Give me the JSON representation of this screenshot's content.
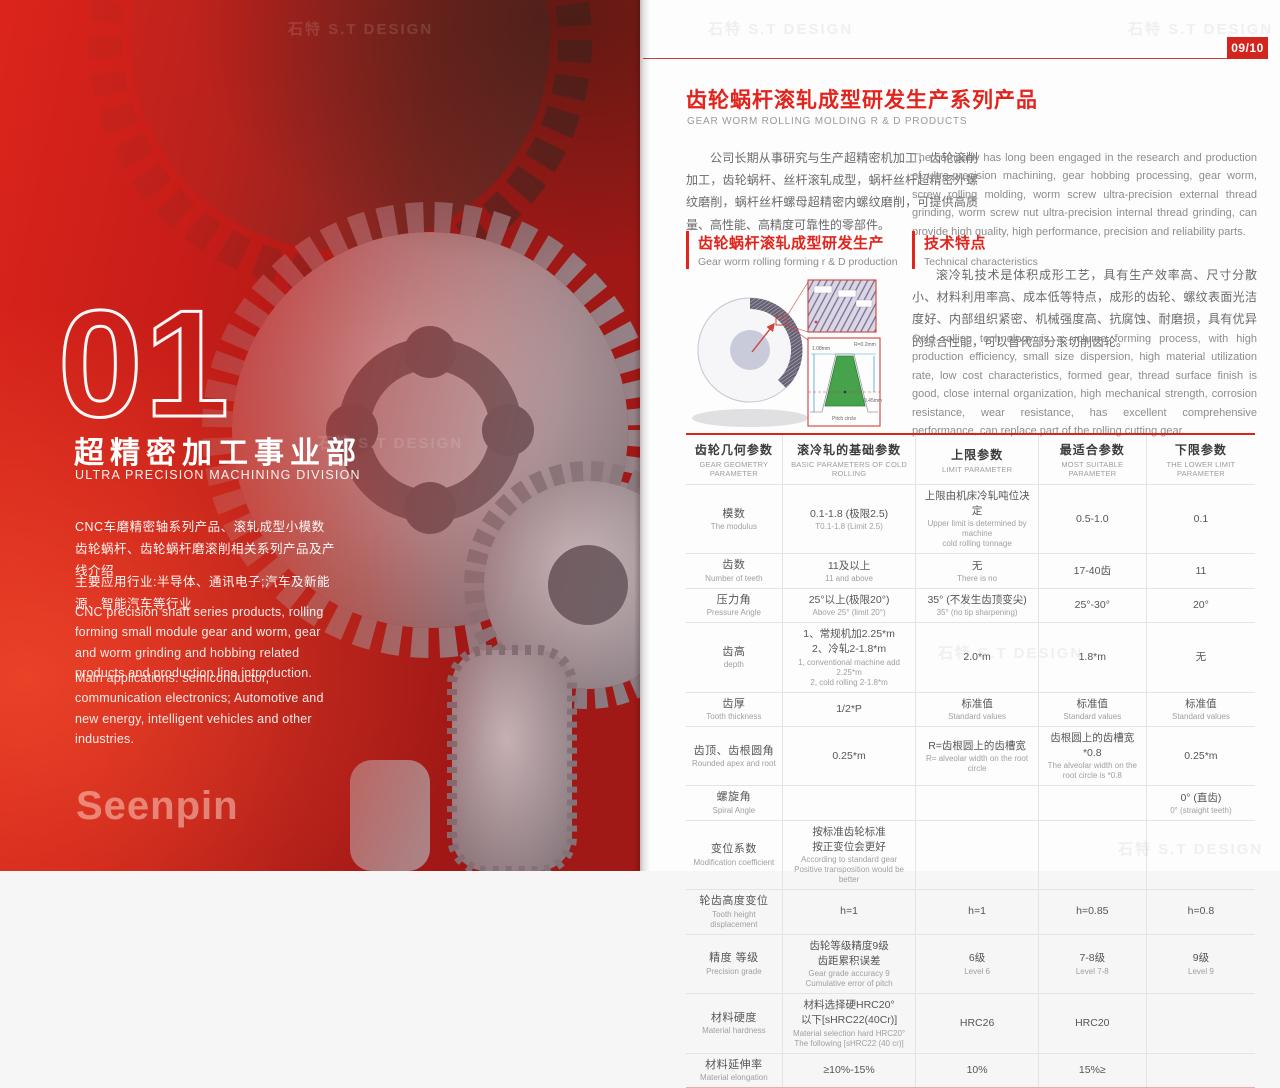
{
  "colors": {
    "accent_red": "#e2241d",
    "badge_red": "#d3251d",
    "panel_red": "#c41e1e",
    "table_rule": "#e4e4e4",
    "text_gray": "#6a6a6a"
  },
  "watermark": {
    "text": "石特 S.T DESIGN"
  },
  "page_badge": "09/10",
  "left_panel": {
    "number": "01",
    "title_cn": "超精密加工事业部",
    "title_en": "ULTRA PRECISION MACHINING DIVISION",
    "para_cn_1": "CNC车磨精密轴系列产品、滚轧成型小模数齿轮蜗杆、齿轮蜗杆磨滚削相关系列产品及产线介绍",
    "para_cn_2": "主要应用行业:半导体、通讯电子;汽车及新能源、智能汽车等行业",
    "para_en_1": "CNC precision shaft series products, rolling forming small module gear and worm, gear and worm grinding and hobbing related products and production line introduction.",
    "para_en_2": "Main applications: semiconductor, communication electronics; Automotive and new energy, intelligent vehicles and other industries.",
    "logo": "Seenpin"
  },
  "right_page": {
    "title_cn": "齿轮蜗杆滚轧成型研发生产系列产品",
    "title_en": "GEAR WORM ROLLING MOLDING R & D PRODUCTS",
    "intro_cn": "公司长期从事研究与生产超精密机加工，齿轮滚削加工，齿轮蜗杆、丝杆滚轧成型，蜗杆丝杆超精密外螺纹磨削，蜗杆丝杆螺母超精密内螺纹磨削，可提供高质量、高性能、高精度可靠性的零部件。",
    "intro_en": "The company has long been engaged in the research and production of ultra-precision machining, gear hobbing processing, gear worm, screw rolling molding, worm screw ultra-precision external thread grinding, worm screw nut ultra-precision internal thread grinding, can provide high quality, high performance, precision and reliability parts.",
    "section_left": {
      "title_cn": "齿轮蜗杆滚轧成型研发生产",
      "title_en": "Gear worm rolling forming r & D production"
    },
    "section_right": {
      "title_cn": "技术特点",
      "title_en": "Technical characteristics"
    },
    "tech_cn": "滚冷轧技术是体积成形工艺，具有生产效率高、尺寸分散小、材料利用率高、成本低等特点，成形的齿轮、螺纹表面光洁度好、内部组织紧密、机械强度高、抗腐蚀、耐磨损，具有优异的综合性能，可以替代部分滚切削齿轮。",
    "tech_en": "Cold rolling technology is a volume forming process, with high production efficiency, small size dispersion, high material utilization rate, low cost characteristics, formed gear, thread surface finish is good, close internal organization, high mechanical strength, corrosion resistance, wear resistance, has excellent comprehensive performance, can replace part of the rolling cutting gear.",
    "diagram": {
      "dim1": "1.08mm",
      "dim2": "R=0.2mm",
      "dim3": "0.45mm",
      "dim4": "Pitch circle"
    },
    "table": {
      "headers": [
        {
          "cn": "齿轮几何参数",
          "en": "GEAR GEOMETRY PARAMETER"
        },
        {
          "cn": "滚冷轧的基础参数",
          "en": "BASIC PARAMETERS OF COLD ROLLING"
        },
        {
          "cn": "上限参数",
          "en": "LIMIT PARAMETER"
        },
        {
          "cn": "最适合参数",
          "en": "MOST SUITABLE PARAMETER"
        },
        {
          "cn": "下限参数",
          "en": "THE LOWER LIMIT PARAMETER"
        }
      ],
      "rows": [
        {
          "param": {
            "cn": "模数",
            "en": "The modulus"
          },
          "cells": [
            {
              "cn": [
                "0.1-1.8 (极限2.5)"
              ],
              "en": [
                "T0.1-1.8 (Limit 2.5)"
              ]
            },
            {
              "cn": [
                "上限由机床冷轧吨位决定"
              ],
              "en": [
                "Upper limit is determined by machine",
                "cold rolling tonnage"
              ]
            },
            {
              "cn": [
                "0.5-1.0"
              ],
              "en": []
            },
            {
              "cn": [
                "0.1"
              ],
              "en": []
            }
          ]
        },
        {
          "param": {
            "cn": "齿数",
            "en": "Number of teeth"
          },
          "cells": [
            {
              "cn": [
                "11及以上"
              ],
              "en": [
                "11 and above"
              ]
            },
            {
              "cn": [
                "无"
              ],
              "en": [
                "There is no"
              ]
            },
            {
              "cn": [
                "17-40齿"
              ],
              "en": []
            },
            {
              "cn": [
                "11"
              ],
              "en": []
            }
          ]
        },
        {
          "param": {
            "cn": "压力角",
            "en": "Pressure Angle"
          },
          "cells": [
            {
              "cn": [
                "25°以上(极限20°)"
              ],
              "en": [
                "Above 25° (limit 20°)"
              ]
            },
            {
              "cn": [
                "35° (不发生齿顶变尖)"
              ],
              "en": [
                "35° (no tip sharpening)"
              ]
            },
            {
              "cn": [
                "25°-30°"
              ],
              "en": []
            },
            {
              "cn": [
                "20°"
              ],
              "en": []
            }
          ]
        },
        {
          "param": {
            "cn": "齿高",
            "en": "depth"
          },
          "cells": [
            {
              "cn": [
                "1、常规机加2.25*m",
                "2、冷轧2-1.8*m"
              ],
              "en": [
                "1, conventional machine add 2.25*m",
                "2, cold rolling 2-1.8*m"
              ]
            },
            {
              "cn": [
                "2.0*m"
              ],
              "en": []
            },
            {
              "cn": [
                "1.8*m"
              ],
              "en": []
            },
            {
              "cn": [
                "无"
              ],
              "en": []
            }
          ]
        },
        {
          "param": {
            "cn": "齿厚",
            "en": "Tooth thickness"
          },
          "cells": [
            {
              "cn": [
                "1/2*P"
              ],
              "en": []
            },
            {
              "cn": [
                "标准值"
              ],
              "en": [
                "Standard values"
              ]
            },
            {
              "cn": [
                "标准值"
              ],
              "en": [
                "Standard values"
              ]
            },
            {
              "cn": [
                "标准值"
              ],
              "en": [
                "Standard values"
              ]
            }
          ]
        },
        {
          "param": {
            "cn": "齿顶、齿根圆角",
            "en": "Rounded apex and root"
          },
          "cells": [
            {
              "cn": [
                "0.25*m"
              ],
              "en": []
            },
            {
              "cn": [
                "R=齿根圆上的齿槽宽"
              ],
              "en": [
                "R= alveolar width on the root circle"
              ]
            },
            {
              "cn": [
                "齿根圆上的齿槽宽*0.8"
              ],
              "en": [
                "The alveolar width on the root circle is *0.8"
              ]
            },
            {
              "cn": [
                "0.25*m"
              ],
              "en": []
            }
          ]
        },
        {
          "param": {
            "cn": "螺旋角",
            "en": "Spiral Angle"
          },
          "cells": [
            {
              "cn": [],
              "en": []
            },
            {
              "cn": [],
              "en": []
            },
            {
              "cn": [],
              "en": []
            },
            {
              "cn": [
                "0° (直齿)"
              ],
              "en": [
                "0° (straight teeth)"
              ]
            }
          ]
        },
        {
          "param": {
            "cn": "变位系数",
            "en": "Modification coefficient"
          },
          "cells": [
            {
              "cn": [
                "按标准齿轮标准",
                "按正变位会更好"
              ],
              "en": [
                "According to standard gear",
                "Positive transposition would be better"
              ]
            },
            {
              "cn": [],
              "en": []
            },
            {
              "cn": [],
              "en": []
            },
            {
              "cn": [],
              "en": []
            }
          ]
        },
        {
          "param": {
            "cn": "轮齿高度变位",
            "en": "Tooth height displacement"
          },
          "cells": [
            {
              "cn": [
                "h=1"
              ],
              "en": []
            },
            {
              "cn": [
                "h=1"
              ],
              "en": []
            },
            {
              "cn": [
                "h=0.85"
              ],
              "en": []
            },
            {
              "cn": [
                "h=0.8"
              ],
              "en": []
            }
          ]
        },
        {
          "param": {
            "cn": "精度 等级",
            "en": "Precision grade"
          },
          "cells": [
            {
              "cn": [
                "齿轮等级精度9级",
                "齿距累积误差"
              ],
              "en": [
                "Gear grade accuracy 9",
                "Cumulative error of pitch"
              ]
            },
            {
              "cn": [
                "6级"
              ],
              "en": [
                "Level 6"
              ]
            },
            {
              "cn": [
                "7-8级"
              ],
              "en": [
                "Level 7-8"
              ]
            },
            {
              "cn": [
                "9级"
              ],
              "en": [
                "Level 9"
              ]
            }
          ]
        },
        {
          "param": {
            "cn": "材料硬度",
            "en": "Material hardness"
          },
          "cells": [
            {
              "cn": [
                "材料选择硬HRC20°",
                "以下[sHRC22(40Cr)]"
              ],
              "en": [
                "Material selection hard HRC20°",
                "The following [sHRC22 (40 cr)]"
              ]
            },
            {
              "cn": [
                "HRC26"
              ],
              "en": []
            },
            {
              "cn": [
                "HRC20"
              ],
              "en": []
            },
            {
              "cn": [],
              "en": []
            }
          ]
        },
        {
          "param": {
            "cn": "材料延伸率",
            "en": "Material elongation"
          },
          "cells": [
            {
              "cn": [
                "≥10%-15%"
              ],
              "en": []
            },
            {
              "cn": [
                "10%"
              ],
              "en": []
            },
            {
              "cn": [
                "15%≥"
              ],
              "en": []
            },
            {
              "cn": [],
              "en": []
            }
          ]
        }
      ]
    }
  }
}
